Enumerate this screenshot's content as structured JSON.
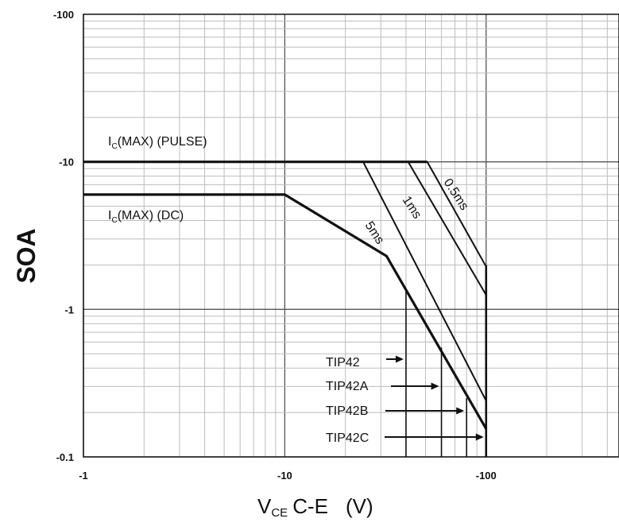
{
  "chart_data": {
    "type": "line",
    "ylabel": "SOA",
    "xlabel": {
      "main": "V",
      "sub": "CE",
      "rest": "C-E",
      "unit": "(V)"
    },
    "x_scale": "log",
    "y_scale": "log",
    "xlim": [
      1,
      100
    ],
    "ylim": [
      0.1,
      100
    ],
    "x_ticks": [
      {
        "value": 1,
        "label": "-1"
      },
      {
        "value": 10,
        "label": "-10"
      },
      {
        "value": 100,
        "label": "-100"
      }
    ],
    "y_ticks": [
      {
        "value": 100,
        "label": "-100"
      },
      {
        "value": 10,
        "label": "-10"
      },
      {
        "value": 1,
        "label": "-1"
      },
      {
        "value": 0.1,
        "label": "-0.1"
      }
    ],
    "grid": true,
    "series": [
      {
        "name": "IC(MAX) (PULSE)",
        "points": [
          [
            1,
            10
          ],
          [
            51,
            10
          ]
        ]
      },
      {
        "name": "IC(MAX) (DC)",
        "points": [
          [
            1,
            6
          ],
          [
            10,
            6
          ],
          [
            32,
            2.3
          ],
          [
            100,
            0.155
          ]
        ]
      },
      {
        "name": "5ms",
        "points": [
          [
            24.5,
            10
          ],
          [
            100,
            0.24
          ]
        ]
      },
      {
        "name": "1ms",
        "points": [
          [
            41,
            10
          ],
          [
            100,
            1.25
          ]
        ]
      },
      {
        "name": "0.5ms",
        "points": [
          [
            51,
            10
          ],
          [
            100,
            1.95
          ]
        ]
      }
    ],
    "boundaries": [
      {
        "name": "TIP42",
        "x": 40,
        "y_top": 1.32
      },
      {
        "name": "TIP42A",
        "x": 60,
        "y_top": 0.55
      },
      {
        "name": "TIP42B",
        "x": 80,
        "y_top": 0.25
      },
      {
        "name": "TIP42C",
        "x": 100,
        "y_top": 2.0
      }
    ],
    "annotations": {
      "pulse": {
        "main": "I",
        "sub": "C",
        "rest": "(MAX) (PULSE)"
      },
      "dc": {
        "main": "I",
        "sub": "C",
        "rest": "(MAX) (DC)"
      },
      "curves": [
        "5ms",
        "1ms",
        "0.5ms"
      ],
      "tip_labels": [
        "TIP42",
        "TIP42A",
        "TIP42B",
        "TIP42C"
      ]
    }
  }
}
